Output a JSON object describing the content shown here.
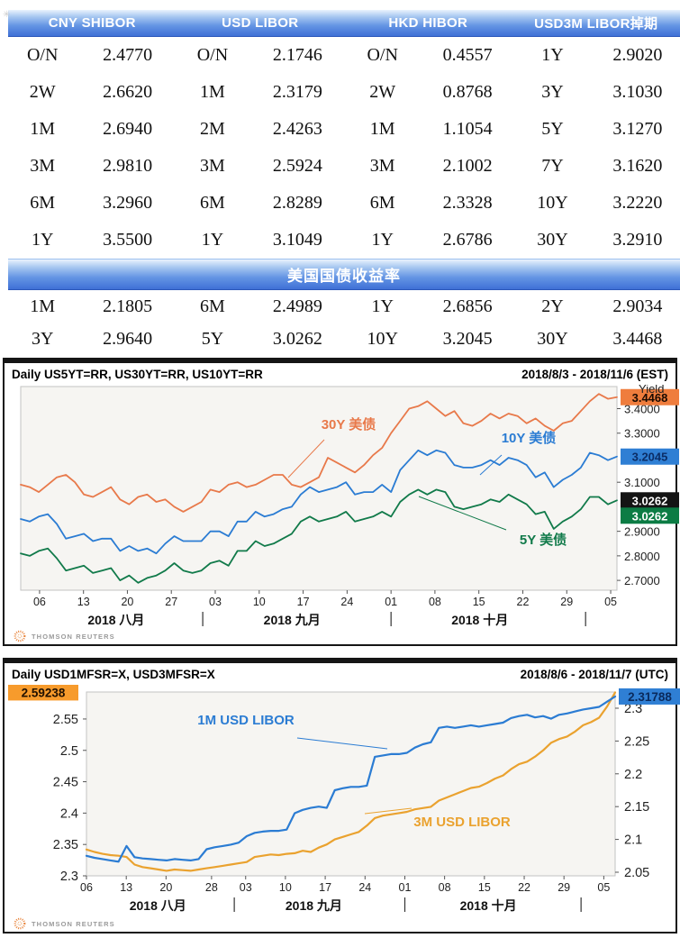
{
  "page": {
    "corner_glyph": "✳"
  },
  "logo": {
    "text": "THOMSON REUTERS"
  },
  "rate_table": {
    "headers": [
      "CNY SHIBOR",
      "USD LIBOR",
      "HKD HIBOR",
      "USD3M LIBOR掉期"
    ],
    "rows": [
      [
        "O/N",
        "2.4770",
        "O/N",
        "2.1746",
        "O/N",
        "0.4557",
        "1Y",
        "2.9020"
      ],
      [
        "2W",
        "2.6620",
        "1M",
        "2.3179",
        "2W",
        "0.8768",
        "3Y",
        "3.1030"
      ],
      [
        "1M",
        "2.6940",
        "2M",
        "2.4263",
        "1M",
        "1.1054",
        "5Y",
        "3.1270"
      ],
      [
        "3M",
        "2.9810",
        "3M",
        "2.5924",
        "3M",
        "2.1002",
        "7Y",
        "3.1620"
      ],
      [
        "6M",
        "3.2960",
        "6M",
        "2.8289",
        "6M",
        "2.3328",
        "10Y",
        "3.2220"
      ],
      [
        "1Y",
        "3.5500",
        "1Y",
        "3.1049",
        "1Y",
        "2.6786",
        "30Y",
        "3.2910"
      ]
    ]
  },
  "treasury_table": {
    "title": "美国国债收益率",
    "rows": [
      [
        "1M",
        "2.1805",
        "6M",
        "2.4989",
        "1Y",
        "2.6856",
        "2Y",
        "2.9034"
      ],
      [
        "3Y",
        "2.9640",
        "5Y",
        "3.0262",
        "10Y",
        "3.2045",
        "30Y",
        "3.4468"
      ]
    ]
  },
  "chart_data": [
    {
      "type": "line",
      "title": "Daily US5YT=RR, US30YT=RR, US10YT=RR",
      "date_range": "2018/8/3 - 2018/11/6 (EST)",
      "axis_title": "Yield",
      "plot_bg": "#f6f5f2",
      "x_axis": {
        "ticks": [
          {
            "label": "06",
            "f": 0.0316
          },
          {
            "label": "13",
            "f": 0.1053
          },
          {
            "label": "20",
            "f": 0.1789
          },
          {
            "label": "27",
            "f": 0.2526
          },
          {
            "label": "03",
            "f": 0.3263
          },
          {
            "label": "10",
            "f": 0.4
          },
          {
            "label": "17",
            "f": 0.4737
          },
          {
            "label": "24",
            "f": 0.5474
          },
          {
            "label": "01",
            "f": 0.6211
          },
          {
            "label": "08",
            "f": 0.6947
          },
          {
            "label": "15",
            "f": 0.7684
          },
          {
            "label": "22",
            "f": 0.8421
          },
          {
            "label": "29",
            "f": 0.9158
          },
          {
            "label": "05",
            "f": 0.9895
          }
        ],
        "months": [
          {
            "label": "2018 八月",
            "f": 0.16
          },
          {
            "label": "2018 九月",
            "f": 0.455
          },
          {
            "label": "2018 十月",
            "f": 0.77
          }
        ],
        "separators": [
          0.3053,
          0.6211,
          0.9474
        ]
      },
      "y_axes": [
        {
          "id": "right",
          "side": "right",
          "range": [
            2.66,
            3.49
          ],
          "ticks": [
            {
              "v": 3.4,
              "label": "3.4000"
            },
            {
              "v": 3.3,
              "label": "3.3000"
            },
            {
              "v": 3.1,
              "label": "3.1000"
            },
            {
              "v": 2.9,
              "label": "2.9000"
            },
            {
              "v": 2.8,
              "label": "2.8000"
            },
            {
              "v": 2.7,
              "label": "2.7000"
            }
          ]
        }
      ],
      "series": [
        {
          "name": "US30YT=RR",
          "label": "30Y 美债",
          "color": "#e8794a",
          "axis": "right",
          "values": [
            3.09,
            3.08,
            3.06,
            3.09,
            3.12,
            3.13,
            3.1,
            3.05,
            3.04,
            3.06,
            3.08,
            3.03,
            3.01,
            3.04,
            3.05,
            3.02,
            3.03,
            3.0,
            2.98,
            3.0,
            3.02,
            3.07,
            3.06,
            3.09,
            3.1,
            3.08,
            3.09,
            3.11,
            3.13,
            3.13,
            3.09,
            3.08,
            3.1,
            3.12,
            3.2,
            3.18,
            3.16,
            3.14,
            3.17,
            3.21,
            3.24,
            3.3,
            3.35,
            3.4,
            3.41,
            3.43,
            3.4,
            3.37,
            3.39,
            3.34,
            3.33,
            3.35,
            3.38,
            3.36,
            3.38,
            3.37,
            3.34,
            3.36,
            3.33,
            3.31,
            3.34,
            3.35,
            3.39,
            3.43,
            3.46,
            3.44,
            3.4468
          ]
        },
        {
          "name": "US10YT=RR",
          "label": "10Y 美债",
          "color": "#2b7cd3",
          "axis": "right",
          "values": [
            2.95,
            2.94,
            2.96,
            2.97,
            2.93,
            2.87,
            2.88,
            2.89,
            2.86,
            2.87,
            2.87,
            2.82,
            2.84,
            2.82,
            2.83,
            2.81,
            2.85,
            2.88,
            2.86,
            2.86,
            2.86,
            2.9,
            2.9,
            2.88,
            2.94,
            2.94,
            2.98,
            2.96,
            2.97,
            2.99,
            3.0,
            3.05,
            3.08,
            3.06,
            3.07,
            3.08,
            3.1,
            3.05,
            3.06,
            3.06,
            3.09,
            3.06,
            3.15,
            3.19,
            3.23,
            3.21,
            3.23,
            3.22,
            3.17,
            3.16,
            3.16,
            3.17,
            3.19,
            3.17,
            3.2,
            3.19,
            3.17,
            3.12,
            3.14,
            3.08,
            3.11,
            3.13,
            3.16,
            3.22,
            3.21,
            3.19,
            3.2045
          ]
        },
        {
          "name": "US5YT=RR",
          "label": "5Y 美债",
          "color": "#117a4a",
          "axis": "right",
          "values": [
            2.81,
            2.8,
            2.82,
            2.83,
            2.79,
            2.74,
            2.75,
            2.76,
            2.73,
            2.74,
            2.75,
            2.7,
            2.72,
            2.69,
            2.71,
            2.72,
            2.74,
            2.77,
            2.74,
            2.73,
            2.74,
            2.77,
            2.78,
            2.76,
            2.82,
            2.82,
            2.86,
            2.84,
            2.85,
            2.87,
            2.89,
            2.94,
            2.96,
            2.94,
            2.95,
            2.96,
            2.98,
            2.94,
            2.95,
            2.96,
            2.98,
            2.96,
            3.02,
            3.05,
            3.07,
            3.05,
            3.07,
            3.06,
            3.0,
            2.99,
            3.0,
            3.01,
            3.03,
            3.02,
            3.05,
            3.03,
            3.01,
            2.97,
            2.98,
            2.91,
            2.94,
            2.96,
            2.99,
            3.04,
            3.04,
            3.01,
            3.0262
          ]
        }
      ],
      "price_boxes": [
        {
          "label": "3.4468",
          "v": 3.4468,
          "axis": "right",
          "side": "right",
          "bg": "#ef7d3d",
          "fg": "#1a0a00",
          "dy": 0
        },
        {
          "label": "3.2045",
          "v": 3.2045,
          "axis": "right",
          "side": "right",
          "bg": "#2f7fd4",
          "fg": "#0b2d66",
          "dy": 0
        },
        {
          "label": "3.0262",
          "v": 3.0262,
          "axis": "right",
          "side": "right",
          "bg": "#141414",
          "fg": "#ffffff",
          "dy": 0
        },
        {
          "label": "3.0262",
          "v": 3.0262,
          "axis": "right",
          "side": "right",
          "bg": "#0c7c44",
          "fg": "#ffffff",
          "dy": 17
        }
      ],
      "labels": [
        {
          "text": "30Y 美债",
          "x": 382,
          "y": 49,
          "color": "#e8794a",
          "leader": [
            355,
            61,
            315,
            103
          ]
        },
        {
          "text": "10Y 美债",
          "x": 582,
          "y": 64,
          "color": "#2b7cd3",
          "leader": [
            552,
            78,
            528,
            100
          ]
        },
        {
          "text": "5Y 美债",
          "x": 598,
          "y": 177,
          "color": "#117a4a",
          "leader": [
            460,
            124,
            557,
            161
          ]
        }
      ]
    },
    {
      "type": "line",
      "title": "Daily USD1MFSR=X, USD3MFSR=X",
      "date_range": "2018/8/6 - 2018/11/7 (UTC)",
      "axis_title": "",
      "plot_bg": "#f6f5f2",
      "x_axis": {
        "ticks": [
          {
            "label": "06",
            "f": 0.0
          },
          {
            "label": "13",
            "f": 0.0753
          },
          {
            "label": "20",
            "f": 0.1505
          },
          {
            "label": "28",
            "f": 0.2366
          },
          {
            "label": "03",
            "f": 0.3011
          },
          {
            "label": "10",
            "f": 0.3763
          },
          {
            "label": "17",
            "f": 0.4516
          },
          {
            "label": "24",
            "f": 0.5269
          },
          {
            "label": "01",
            "f": 0.6022
          },
          {
            "label": "08",
            "f": 0.6774
          },
          {
            "label": "15",
            "f": 0.7527
          },
          {
            "label": "22",
            "f": 0.828
          },
          {
            "label": "29",
            "f": 0.9032
          },
          {
            "label": "05",
            "f": 0.9785
          }
        ],
        "months": [
          {
            "label": "2018 八月",
            "f": 0.135
          },
          {
            "label": "2018 九月",
            "f": 0.43
          },
          {
            "label": "2018 十月",
            "f": 0.76
          }
        ],
        "separators": [
          0.2796,
          0.6022,
          0.9355
        ]
      },
      "y_axes": [
        {
          "id": "left",
          "side": "left",
          "range": [
            2.3,
            2.593
          ],
          "ticks": [
            {
              "v": 2.55,
              "label": "2.55"
            },
            {
              "v": 2.5,
              "label": "2.5"
            },
            {
              "v": 2.45,
              "label": "2.45"
            },
            {
              "v": 2.4,
              "label": "2.4"
            },
            {
              "v": 2.35,
              "label": "2.35"
            },
            {
              "v": 2.3,
              "label": "2.3"
            }
          ]
        },
        {
          "id": "right",
          "side": "right",
          "range": [
            2.0445,
            2.3247
          ],
          "ticks": [
            {
              "v": 2.3,
              "label": "2.3"
            },
            {
              "v": 2.25,
              "label": "2.25"
            },
            {
              "v": 2.2,
              "label": "2.2"
            },
            {
              "v": 2.15,
              "label": "2.15"
            },
            {
              "v": 2.1,
              "label": "2.1"
            },
            {
              "v": 2.05,
              "label": "2.05"
            }
          ]
        }
      ],
      "series": [
        {
          "name": "USD3MFSR=X",
          "label": "3M USD LIBOR",
          "color": "#eaa22f",
          "axis": "left",
          "values": [
            2.342,
            2.338,
            2.335,
            2.333,
            2.332,
            2.33,
            2.318,
            2.314,
            2.312,
            2.31,
            2.308,
            2.31,
            2.309,
            2.308,
            2.31,
            2.312,
            2.314,
            2.316,
            2.318,
            2.32,
            2.322,
            2.33,
            2.332,
            2.334,
            2.333,
            2.335,
            2.336,
            2.34,
            2.338,
            2.345,
            2.35,
            2.358,
            2.362,
            2.366,
            2.37,
            2.38,
            2.392,
            2.396,
            2.398,
            2.4,
            2.402,
            2.406,
            2.408,
            2.41,
            2.42,
            2.425,
            2.43,
            2.435,
            2.44,
            2.442,
            2.448,
            2.455,
            2.46,
            2.47,
            2.478,
            2.482,
            2.49,
            2.5,
            2.512,
            2.518,
            2.522,
            2.53,
            2.54,
            2.545,
            2.552,
            2.57,
            2.59238
          ]
        },
        {
          "name": "USD1MFSR=X",
          "label": "1M USD LIBOR",
          "color": "#2b7cd3",
          "axis": "right",
          "values": [
            2.075,
            2.072,
            2.07,
            2.068,
            2.066,
            2.09,
            2.073,
            2.071,
            2.07,
            2.069,
            2.068,
            2.07,
            2.069,
            2.068,
            2.07,
            2.085,
            2.088,
            2.09,
            2.092,
            2.095,
            2.105,
            2.11,
            2.112,
            2.113,
            2.113,
            2.115,
            2.14,
            2.145,
            2.148,
            2.15,
            2.148,
            2.175,
            2.178,
            2.18,
            2.18,
            2.182,
            2.226,
            2.228,
            2.23,
            2.23,
            2.232,
            2.24,
            2.245,
            2.248,
            2.27,
            2.272,
            2.27,
            2.272,
            2.274,
            2.272,
            2.274,
            2.276,
            2.278,
            2.285,
            2.288,
            2.29,
            2.286,
            2.288,
            2.284,
            2.29,
            2.292,
            2.295,
            2.298,
            2.3,
            2.302,
            2.31,
            2.31788
          ]
        }
      ],
      "price_boxes": [
        {
          "label": "2.59238",
          "v": 2.59238,
          "axis": "left",
          "side": "left",
          "bg": "#f79b2c",
          "fg": "#201000",
          "dy": 0
        },
        {
          "label": "2.31788",
          "v": 2.31788,
          "axis": "right",
          "side": "right",
          "bg": "#2f7fd4",
          "fg": "#0a2a5c",
          "dy": 0
        }
      ],
      "labels": [
        {
          "text": "1M USD LIBOR",
          "x": 268,
          "y": 44,
          "color": "#2b7cd3",
          "leader": [
            325,
            59,
            425,
            71
          ]
        },
        {
          "text": "3M USD LIBOR",
          "x": 508,
          "y": 157,
          "color": "#eaa22f",
          "leader": [
            400,
            143,
            452,
            137
          ]
        }
      ]
    }
  ]
}
